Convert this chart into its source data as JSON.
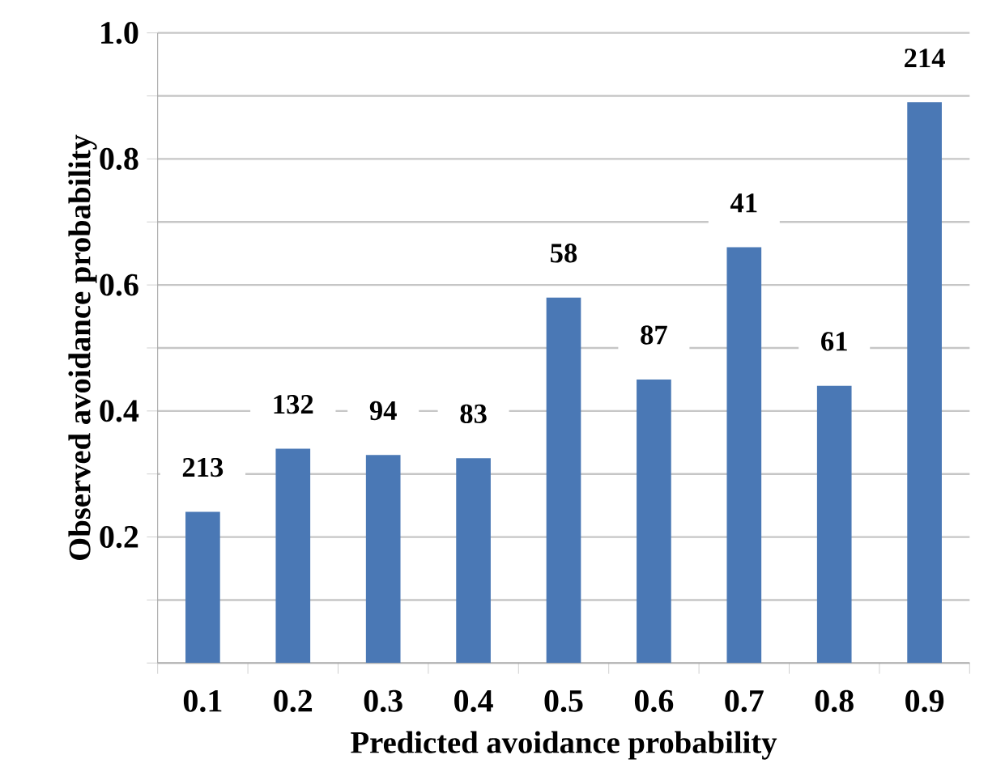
{
  "chart_data": {
    "type": "bar",
    "xlabel": "Predicted avoidance probability",
    "ylabel": "Observed avoidance probability",
    "categories": [
      "0.1",
      "0.2",
      "0.3",
      "0.4",
      "0.5",
      "0.6",
      "0.7",
      "0.8",
      "0.9"
    ],
    "values": [
      0.24,
      0.34,
      0.33,
      0.325,
      0.58,
      0.45,
      0.66,
      0.44,
      0.89
    ],
    "color": "#4a78b5",
    "ylim": [
      0,
      1.0
    ],
    "yticks": [
      {
        "value": 0,
        "label": null
      },
      {
        "value": 0.1,
        "label": null
      },
      0.2,
      {
        "value": 0.3,
        "label": null
      },
      0.4,
      {
        "value": 0.5,
        "label": null
      },
      0.6,
      {
        "value": 0.7,
        "label": null
      },
      0.8,
      {
        "value": 0.9,
        "label": null
      },
      {
        "value": 1.0,
        "label": "1.0"
      }
    ],
    "grid": "y",
    "annotations": [
      {
        "text": "213",
        "x": "0.1",
        "y": 0.24
      },
      {
        "text": "132",
        "x": "0.2",
        "y": 0.34
      },
      {
        "text": "94",
        "x": "0.3",
        "y": 0.33
      },
      {
        "text": "83",
        "x": "0.4",
        "y": 0.325
      },
      {
        "text": "58",
        "x": "0.5",
        "y": 0.58
      },
      {
        "text": "87",
        "x": "0.6",
        "y": 0.45
      },
      {
        "text": "41",
        "x": "0.7",
        "y": 0.66
      },
      {
        "text": "61",
        "x": "0.8",
        "y": 0.44
      },
      {
        "text": "214",
        "x": "0.9",
        "y": 0.89
      }
    ]
  }
}
